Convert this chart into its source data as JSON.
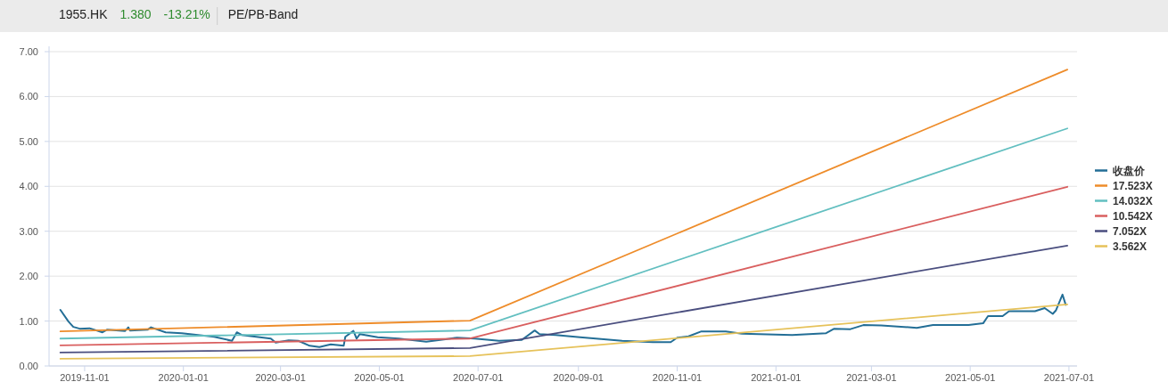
{
  "chart_data": {
    "type": "line",
    "annotations": [
      "1955.HK",
      "1.380",
      "-13.21%",
      "PE/PB-Band"
    ],
    "xlim": [
      "2019-10-10",
      "2021-07-06"
    ],
    "ylim": [
      0,
      7
    ],
    "xticks": [
      "2019-11-01",
      "2020-01-01",
      "2020-03-01",
      "2020-05-01",
      "2020-07-01",
      "2020-09-01",
      "2020-11-01",
      "2021-01-01",
      "2021-03-01",
      "2021-05-01",
      "2021-07-01"
    ],
    "yticks": [
      {
        "value": 0,
        "label": "0.00"
      },
      {
        "value": 1,
        "label": "1.00"
      },
      {
        "value": 2,
        "label": "2.00"
      },
      {
        "value": 3,
        "label": "3.00"
      },
      {
        "value": 4,
        "label": "4.00"
      },
      {
        "value": 5,
        "label": "5.00"
      },
      {
        "value": 6,
        "label": "6.00"
      },
      {
        "value": 7,
        "label": "7.00"
      }
    ],
    "grid": "y",
    "legend": "right",
    "series": [
      {
        "name": "收盘价",
        "color": "#236e96",
        "x": [
          "2019-10-17",
          "2019-10-22",
          "2019-10-25",
          "2019-10-29",
          "2019-11-04",
          "2019-11-12",
          "2019-11-15",
          "2019-11-26",
          "2019-11-28",
          "2019-11-29",
          "2019-12-10",
          "2019-12-12",
          "2019-12-21",
          "2019-12-31",
          "2020-01-20",
          "2020-01-31",
          "2020-02-03",
          "2020-02-06",
          "2020-02-24",
          "2020-02-27",
          "2020-03-06",
          "2020-03-12",
          "2020-03-19",
          "2020-03-25",
          "2020-04-01",
          "2020-04-09",
          "2020-04-10",
          "2020-04-15",
          "2020-04-17",
          "2020-04-19",
          "2020-04-30",
          "2020-05-13",
          "2020-05-30",
          "2020-06-12",
          "2020-06-18",
          "2020-06-29",
          "2020-07-14",
          "2020-07-28",
          "2020-08-05",
          "2020-08-08",
          "2020-08-18",
          "2020-09-02",
          "2020-09-28",
          "2020-10-17",
          "2020-10-28",
          "2020-11-01",
          "2020-11-08",
          "2020-11-16",
          "2020-12-01",
          "2020-12-11",
          "2021-01-11",
          "2021-02-01",
          "2021-02-06",
          "2021-02-16",
          "2021-02-24",
          "2021-03-07",
          "2021-03-29",
          "2021-04-08",
          "2021-04-30",
          "2021-05-09",
          "2021-05-12",
          "2021-05-21",
          "2021-05-25",
          "2021-06-10",
          "2021-06-16",
          "2021-06-21",
          "2021-06-23",
          "2021-06-27",
          "2021-06-29"
        ],
        "values": [
          1.25,
          0.99,
          0.87,
          0.83,
          0.84,
          0.75,
          0.81,
          0.78,
          0.86,
          0.79,
          0.81,
          0.86,
          0.75,
          0.73,
          0.65,
          0.56,
          0.75,
          0.69,
          0.61,
          0.52,
          0.57,
          0.56,
          0.45,
          0.42,
          0.48,
          0.45,
          0.65,
          0.78,
          0.61,
          0.71,
          0.64,
          0.61,
          0.54,
          0.6,
          0.63,
          0.61,
          0.56,
          0.58,
          0.79,
          0.71,
          0.69,
          0.64,
          0.56,
          0.53,
          0.53,
          0.63,
          0.66,
          0.77,
          0.77,
          0.72,
          0.69,
          0.73,
          0.83,
          0.82,
          0.91,
          0.9,
          0.85,
          0.91,
          0.91,
          0.95,
          1.11,
          1.11,
          1.22,
          1.22,
          1.29,
          1.16,
          1.24,
          1.59,
          1.36
        ]
      },
      {
        "name": "17.523X",
        "color": "#ee8c2a",
        "x": [
          "2019-10-17",
          "2020-06-26",
          "2021-06-30"
        ],
        "values": [
          0.77,
          1.01,
          6.6
        ]
      },
      {
        "name": "14.032X",
        "color": "#62bfc0",
        "x": [
          "2019-10-17",
          "2020-06-26",
          "2021-06-30"
        ],
        "values": [
          0.61,
          0.79,
          5.29
        ]
      },
      {
        "name": "10.542X",
        "color": "#d95f5f",
        "x": [
          "2019-10-17",
          "2020-06-26",
          "2021-06-30"
        ],
        "values": [
          0.46,
          0.61,
          3.99
        ]
      },
      {
        "name": "7.052X",
        "color": "#4a4e7f",
        "x": [
          "2019-10-17",
          "2020-06-26",
          "2021-06-30"
        ],
        "values": [
          0.3,
          0.4,
          2.68
        ]
      },
      {
        "name": "3.562X",
        "color": "#e6c25a",
        "x": [
          "2019-10-17",
          "2020-06-26",
          "2021-06-30"
        ],
        "values": [
          0.16,
          0.22,
          1.37
        ]
      }
    ]
  }
}
